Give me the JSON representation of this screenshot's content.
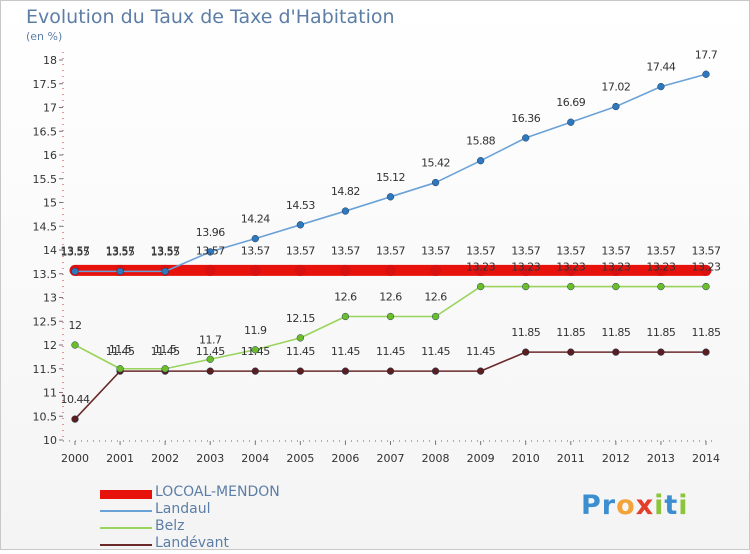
{
  "title": "Evolution du Taux de Taxe d'Habitation",
  "subtitle": "(en %)",
  "brand": {
    "text": "Proxiti",
    "letters": [
      {
        "ch": "P",
        "color": "#3b8fd0"
      },
      {
        "ch": "r",
        "color": "#3b8fd0"
      },
      {
        "ch": "o",
        "color": "#f2a33a"
      },
      {
        "ch": "x",
        "color": "#e2402c"
      },
      {
        "ch": "i",
        "color": "#8cc43a"
      },
      {
        "ch": "t",
        "color": "#3b8fd0"
      },
      {
        "ch": "i",
        "color": "#8cc43a"
      }
    ]
  },
  "chart_data": {
    "type": "line",
    "x": [
      "2000",
      "2001",
      "2002",
      "2003",
      "2004",
      "2005",
      "2006",
      "2007",
      "2008",
      "2009",
      "2010",
      "2011",
      "2012",
      "2013",
      "2014"
    ],
    "ylim": [
      10,
      18
    ],
    "yticks": [
      "10",
      "10.5",
      "11",
      "11.5",
      "12",
      "12.5",
      "13",
      "13.5",
      "14",
      "14.5",
      "15",
      "15.5",
      "16",
      "16.5",
      "17",
      "17.5",
      "18"
    ],
    "grid": false,
    "legend_placement": "bottom-left",
    "series": [
      {
        "name": "LOCOAL-MENDON",
        "color": "#e8120d",
        "marker_color": "#d81010",
        "values": [
          13.57,
          13.57,
          13.57,
          13.57,
          13.57,
          13.57,
          13.57,
          13.57,
          13.57,
          13.57,
          13.57,
          13.57,
          13.57,
          13.57,
          13.57
        ],
        "labels": [
          "13.57",
          "13.57",
          "13.57",
          "13.57",
          "13.57",
          "13.57",
          "13.57",
          "13.57",
          "13.57",
          "13.57",
          "13.57",
          "13.57",
          "13.57",
          "13.57",
          "13.57"
        ]
      },
      {
        "name": "Landaul",
        "color": "#6aa2d8",
        "marker_color": "#2f78bd",
        "values": [
          13.55,
          13.55,
          13.55,
          13.96,
          14.24,
          14.53,
          14.82,
          15.12,
          15.42,
          15.88,
          16.36,
          16.69,
          17.02,
          17.44,
          17.7
        ],
        "labels": [
          "13.55",
          "13.55",
          "13.55",
          "13.96",
          "14.24",
          "14.53",
          "14.82",
          "15.12",
          "15.42",
          "15.88",
          "16.36",
          "16.69",
          "17.02",
          "17.44",
          "17.7"
        ]
      },
      {
        "name": "Belz",
        "color": "#99d45c",
        "marker_color": "#6cbd2a",
        "values": [
          12,
          11.5,
          11.5,
          11.7,
          11.9,
          12.15,
          12.6,
          12.6,
          12.6,
          13.23,
          13.23,
          13.23,
          13.23,
          13.23,
          13.23
        ],
        "labels": [
          "12",
          "11.5",
          "11.5",
          "11.7",
          "11.9",
          "12.15",
          "12.6",
          "12.6",
          "12.6",
          "13.23",
          "13.23",
          "13.23",
          "13.23",
          "13.23",
          "13.23"
        ]
      },
      {
        "name": "Landévant",
        "color": "#6b2a2a",
        "marker_color": "#5a1e1e",
        "values": [
          10.44,
          11.45,
          11.45,
          11.45,
          11.45,
          11.45,
          11.45,
          11.45,
          11.45,
          11.45,
          11.85,
          11.85,
          11.85,
          11.85,
          11.85
        ],
        "labels": [
          "10.44",
          "11.45",
          "11.45",
          "11.45",
          "11.45",
          "11.45",
          "11.45",
          "11.45",
          "11.45",
          "11.45",
          "11.85",
          "11.85",
          "11.85",
          "11.85",
          "11.85"
        ]
      }
    ]
  }
}
